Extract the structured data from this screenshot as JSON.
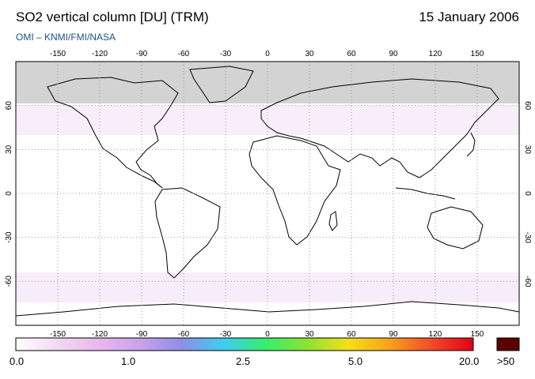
{
  "header": {
    "title": "SO2 vertical column [DU] (TRM)",
    "date": "15 January 2006",
    "subtitle": "OMI  –  KNMI/FMI/NASA"
  },
  "map": {
    "lon_ticks": [
      -150,
      -120,
      -90,
      -60,
      -30,
      0,
      30,
      60,
      90,
      120,
      150
    ],
    "lat_ticks": [
      60,
      30,
      0,
      -30,
      -60
    ],
    "lon_range": [
      -180,
      180
    ],
    "lat_range": [
      -90,
      90
    ],
    "no_data_color": "#d3d3d3",
    "land_outline_color": "#000000",
    "grid_color": "#9a9a9a"
  },
  "colorbar": {
    "labels": [
      "0.0",
      "1.0",
      "2.5",
      "5.0",
      "20.0"
    ],
    "overflow_label": ">50",
    "overflow_color": "#5a0000",
    "gradient_stops": [
      "#ffffff",
      "#f1d9f1",
      "#e8b7ee",
      "#c9a2ea",
      "#8e8ee6",
      "#3ecdf2",
      "#35ee6d",
      "#8be233",
      "#f3e019",
      "#f8a01b",
      "#ef4b2b",
      "#e20018"
    ]
  }
}
